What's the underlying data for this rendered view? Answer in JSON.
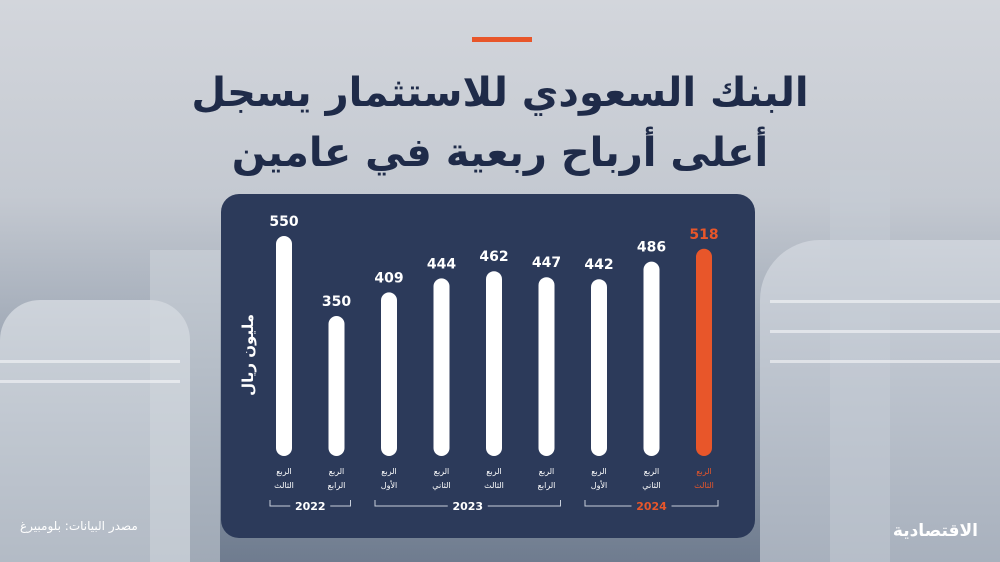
{
  "title": {
    "line1": "البنك السعودي للاستثمار يسجل",
    "line2": "أعلى أرباح ربعية في عامين"
  },
  "colors": {
    "accent": "#e8562a",
    "title": "#1f2b49",
    "panel": "#2c3a5a",
    "bar": "#ffffff"
  },
  "source": "مصدر البيانات: بلومبيرغ",
  "logo": "الاقتصادية",
  "chart_data": {
    "type": "bar",
    "ylabel": "مليون ريال",
    "categories": [
      [
        "الربع",
        "الثالث"
      ],
      [
        "الربع",
        "الرابع"
      ],
      [
        "الربع",
        "الأول"
      ],
      [
        "الربع",
        "الثاني"
      ],
      [
        "الربع",
        "الثالث"
      ],
      [
        "الربع",
        "الرابع"
      ],
      [
        "الربع",
        "الأول"
      ],
      [
        "الربع",
        "الثاني"
      ],
      [
        "الربع",
        "الثالث"
      ]
    ],
    "values": [
      550,
      350,
      409,
      444,
      462,
      447,
      442,
      486,
      518
    ],
    "highlight_index": 8,
    "years": [
      {
        "label": "2022",
        "from": 0,
        "to": 1
      },
      {
        "label": "2023",
        "from": 2,
        "to": 5
      },
      {
        "label": "2024",
        "from": 6,
        "to": 8
      }
    ],
    "ylim": [
      0,
      550
    ],
    "grid": false
  }
}
